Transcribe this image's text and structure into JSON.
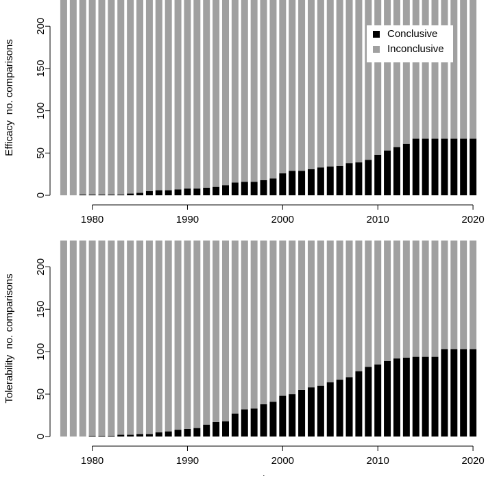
{
  "chart_data": [
    {
      "type": "stacked-bar",
      "ylabel": "Efficacy  no. comparisons",
      "x": [
        1977,
        1978,
        1979,
        1980,
        1981,
        1982,
        1983,
        1984,
        1985,
        1986,
        1987,
        1988,
        1989,
        1990,
        1991,
        1992,
        1993,
        1994,
        1995,
        1996,
        1997,
        1998,
        1999,
        2000,
        2001,
        2002,
        2003,
        2004,
        2005,
        2006,
        2007,
        2008,
        2009,
        2010,
        2011,
        2012,
        2013,
        2014,
        2015,
        2016,
        2017,
        2018,
        2019,
        2020
      ],
      "series": [
        {
          "name": "Conclusive",
          "color": "#000000",
          "values": [
            0,
            0,
            1,
            1,
            1,
            1,
            1,
            2,
            3,
            5,
            6,
            6,
            7,
            8,
            8,
            9,
            10,
            12,
            15,
            16,
            16,
            18,
            20,
            26,
            29,
            29,
            31,
            33,
            34,
            35,
            38,
            39,
            42,
            48,
            53,
            57,
            61,
            67,
            67,
            67,
            67,
            67,
            67,
            67
          ]
        },
        {
          "name": "Inconclusive",
          "color": "#a0a0a0",
          "values": [
            231,
            231,
            230,
            230,
            230,
            230,
            230,
            229,
            228,
            226,
            225,
            225,
            224,
            223,
            223,
            222,
            221,
            219,
            216,
            215,
            215,
            213,
            211,
            205,
            202,
            202,
            200,
            198,
            197,
            196,
            193,
            192,
            189,
            183,
            178,
            174,
            170,
            164,
            164,
            164,
            164,
            164,
            164,
            164
          ]
        }
      ],
      "xlim": [
        1976.5,
        2020.5
      ],
      "xticks": [
        1980,
        1990,
        2000,
        2010,
        2020
      ],
      "ylim": [
        0,
        231
      ],
      "yticks": [
        0,
        50,
        100,
        150,
        200
      ],
      "legend": "top-right"
    },
    {
      "type": "stacked-bar",
      "ylabel": "Tolerability  no. comparisons",
      "xlabel": "Study year",
      "x": [
        1977,
        1978,
        1979,
        1980,
        1981,
        1982,
        1983,
        1984,
        1985,
        1986,
        1987,
        1988,
        1989,
        1990,
        1991,
        1992,
        1993,
        1994,
        1995,
        1996,
        1997,
        1998,
        1999,
        2000,
        2001,
        2002,
        2003,
        2004,
        2005,
        2006,
        2007,
        2008,
        2009,
        2010,
        2011,
        2012,
        2013,
        2014,
        2015,
        2016,
        2017,
        2018,
        2019,
        2020
      ],
      "series": [
        {
          "color": "#000000",
          "values": [
            0,
            0,
            0,
            1,
            1,
            1,
            2,
            2,
            3,
            3,
            5,
            6,
            8,
            9,
            10,
            14,
            17,
            18,
            27,
            32,
            33,
            38,
            41,
            48,
            50,
            55,
            58,
            60,
            64,
            67,
            70,
            77,
            82,
            85,
            89,
            92,
            93,
            94,
            94,
            94,
            103,
            103,
            103,
            103
          ]
        },
        {
          "color": "#a0a0a0",
          "values": [
            231,
            231,
            231,
            230,
            230,
            230,
            229,
            229,
            228,
            228,
            226,
            225,
            223,
            222,
            221,
            217,
            214,
            213,
            204,
            199,
            198,
            193,
            190,
            183,
            181,
            176,
            173,
            171,
            167,
            164,
            161,
            154,
            149,
            146,
            142,
            139,
            138,
            137,
            137,
            137,
            128,
            128,
            128,
            128
          ]
        }
      ],
      "xlim": [
        1976.5,
        2020.5
      ],
      "xticks": [
        1980,
        1990,
        2000,
        2010,
        2020
      ],
      "ylim": [
        0,
        231
      ],
      "yticks": [
        0,
        50,
        100,
        150,
        200
      ]
    }
  ]
}
